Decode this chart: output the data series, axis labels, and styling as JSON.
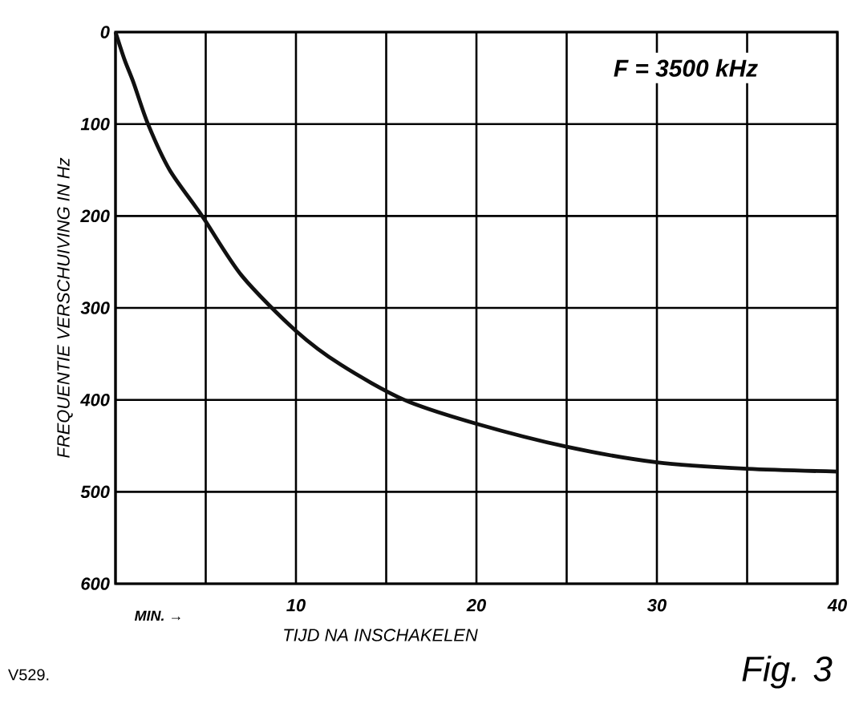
{
  "chart_data": {
    "type": "line",
    "xlabel": "TIJD NA INSCHAKELEN",
    "ylabel": "FREQUENTIE VERSCHUIVING IN Hz",
    "annotations": [
      "F = 3500 kHz",
      "MIN. →",
      "V529.",
      "Fig. 3"
    ],
    "x": [
      0,
      0.5,
      1,
      1.8,
      3,
      4.8,
      7,
      10,
      12.5,
      16,
      20,
      25,
      30,
      35,
      40
    ],
    "series": [
      {
        "color": "#111111",
        "values": [
          0,
          30,
          55,
          100,
          150,
          200,
          265,
          325,
          362,
          400,
          426,
          451,
          468,
          475,
          478
        ]
      }
    ],
    "xlim": [
      0,
      40
    ],
    "xticks": [
      {
        "value": 0,
        "label": null
      },
      {
        "value": 5,
        "label": null
      },
      10,
      {
        "value": 15,
        "label": null
      },
      20,
      {
        "value": 25,
        "label": null
      },
      30,
      {
        "value": 35,
        "label": null
      },
      40
    ],
    "ylim": [
      600,
      0
    ],
    "yticks": [
      0,
      100,
      200,
      300,
      400,
      500,
      600
    ],
    "grid": true,
    "marker": "none",
    "line_style": "solid"
  }
}
